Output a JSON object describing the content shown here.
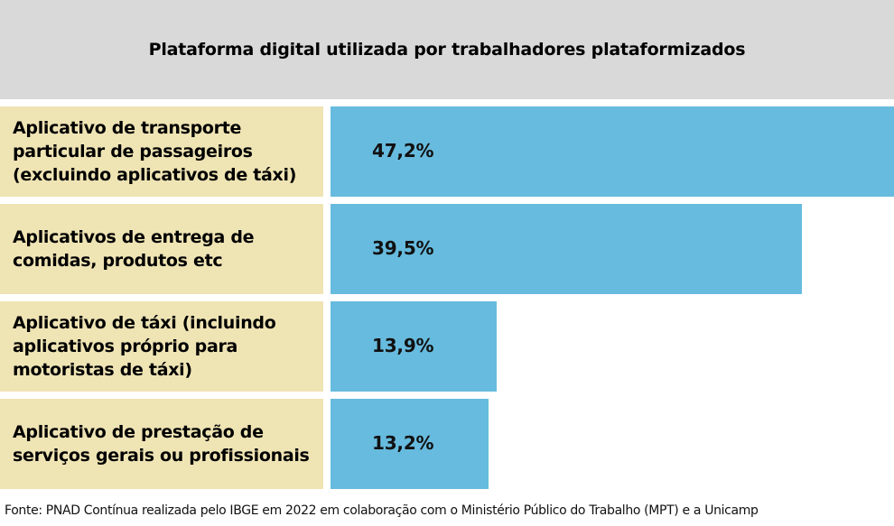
{
  "chart_data": {
    "type": "bar",
    "orientation": "horizontal",
    "title": "Plataforma digital utilizada por trabalhadores plataformizados",
    "categories": [
      "Aplicativo de transporte particular de passageiros (excluindo aplicativos de táxi)",
      "Aplicativos de entrega de comidas, produtos etc",
      "Aplicativo de táxi (incluindo aplicativos próprio para motoristas de táxi)",
      "Aplicativo de prestação de serviços gerais ou profissionais"
    ],
    "category_lines": [
      [
        "Aplicativo de transporte",
        "particular de passageiros",
        "(excluindo aplicativos de táxi)"
      ],
      [
        "Aplicativos de entrega de",
        "comidas, produtos etc"
      ],
      [
        "Aplicativo de táxi (incluindo",
        "aplicativos próprio para",
        "motoristas de táxi)"
      ],
      [
        "Aplicativo de prestação de",
        "serviços gerais ou profissionais"
      ]
    ],
    "values": [
      47.2,
      39.5,
      13.9,
      13.2
    ],
    "value_labels": [
      "47,2%",
      "39,5%",
      "13,9%",
      "13,2%"
    ],
    "unit": "%",
    "xlim": [
      0,
      47.2
    ],
    "colors": {
      "bar": "#67bbde",
      "label_bg": "#efe4b4",
      "title_bg": "#d9d9d9"
    },
    "source": "Fonte: PNAD Contínua realizada pelo IBGE em 2022 em colaboração com o Ministério Público do Trabalho (MPT) e a Unicamp"
  }
}
